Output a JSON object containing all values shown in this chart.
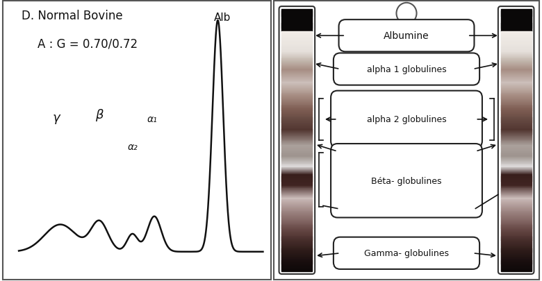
{
  "title_line1": "D. Normal Bovine",
  "title_line2": "A : G = 0.70/0.72",
  "alb_label": "Alb",
  "greek_labels": [
    "γ",
    "β",
    "α₂",
    "α₁"
  ],
  "box_labels": [
    "Albumine",
    "alpha 1 globulines",
    "alpha 2 globulines",
    "Béta- globulines",
    "Gamma- globulines"
  ],
  "bg_color": "#ffffff",
  "line_color": "#111111",
  "figsize": [
    7.8,
    4.06
  ],
  "dpi": 100,
  "strip_bands": [
    [
      0.0,
      0.09,
      [
        0.04,
        0.03,
        0.03
      ]
    ],
    [
      0.09,
      0.16,
      [
        0.93,
        0.9,
        0.88
      ]
    ],
    [
      0.16,
      0.22,
      [
        0.78,
        0.72,
        0.68
      ]
    ],
    [
      0.22,
      0.24,
      [
        0.65,
        0.57,
        0.52
      ]
    ],
    [
      0.24,
      0.3,
      [
        0.82,
        0.76,
        0.72
      ]
    ],
    [
      0.3,
      0.36,
      [
        0.72,
        0.64,
        0.6
      ]
    ],
    [
      0.36,
      0.4,
      [
        0.58,
        0.48,
        0.44
      ]
    ],
    [
      0.4,
      0.44,
      [
        0.44,
        0.32,
        0.28
      ]
    ],
    [
      0.44,
      0.48,
      [
        0.35,
        0.22,
        0.2
      ]
    ],
    [
      0.48,
      0.53,
      [
        0.48,
        0.36,
        0.33
      ]
    ],
    [
      0.53,
      0.58,
      [
        0.62,
        0.52,
        0.5
      ]
    ],
    [
      0.58,
      0.62,
      [
        0.78,
        0.7,
        0.67
      ]
    ],
    [
      0.62,
      0.65,
      [
        0.92,
        0.87,
        0.85
      ]
    ],
    [
      0.65,
      0.68,
      [
        0.22,
        0.12,
        0.13
      ]
    ],
    [
      0.68,
      0.72,
      [
        0.88,
        0.82,
        0.8
      ]
    ],
    [
      0.72,
      0.76,
      [
        0.75,
        0.67,
        0.64
      ]
    ],
    [
      0.76,
      0.79,
      [
        0.62,
        0.53,
        0.5
      ]
    ],
    [
      0.79,
      0.82,
      [
        0.5,
        0.41,
        0.38
      ]
    ],
    [
      0.82,
      0.85,
      [
        0.4,
        0.31,
        0.29
      ]
    ],
    [
      0.85,
      0.88,
      [
        0.32,
        0.23,
        0.22
      ]
    ],
    [
      0.88,
      0.91,
      [
        0.25,
        0.17,
        0.16
      ]
    ],
    [
      0.91,
      0.94,
      [
        0.18,
        0.12,
        0.11
      ]
    ],
    [
      0.94,
      0.97,
      [
        0.12,
        0.07,
        0.07
      ]
    ],
    [
      0.97,
      1.0,
      [
        0.07,
        0.04,
        0.04
      ]
    ]
  ]
}
